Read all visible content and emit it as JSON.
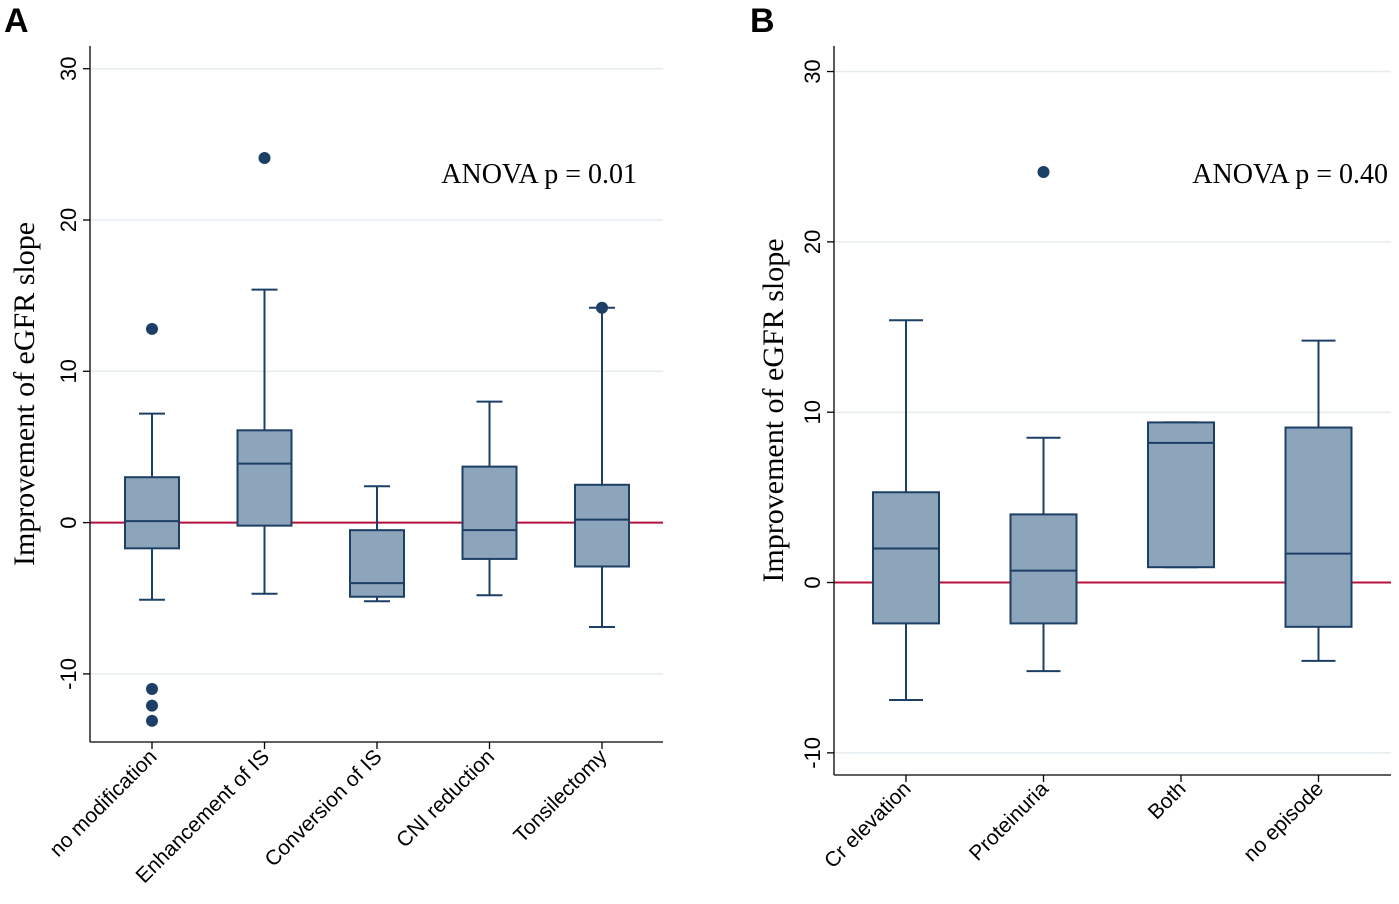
{
  "chart_data": [
    {
      "type": "box",
      "panel_label": "A",
      "ylabel": "Improvement  of eGFR slope",
      "ylim": [
        -14.5,
        31.5
      ],
      "yticks": [
        -10,
        0,
        10,
        20,
        30
      ],
      "ytick_labels": [
        "-10",
        "0",
        "10",
        "20",
        "30"
      ],
      "annotation": "ANOVA  p = 0.01",
      "reference_line": 0,
      "grid": true,
      "categories": [
        "no modification",
        "Enhancement of IS",
        "Conversion of IS",
        "CNI reduction",
        "Tonsilectomy"
      ],
      "boxes": [
        {
          "whisker_low": -5.1,
          "q1": -1.7,
          "median": 0.1,
          "q3": 3.0,
          "whisker_high": 7.2,
          "outliers": [
            12.8,
            -11.0,
            -12.1,
            -13.1
          ]
        },
        {
          "whisker_low": -4.7,
          "q1": -0.2,
          "median": 3.9,
          "q3": 6.1,
          "whisker_high": 15.4,
          "outliers": [
            24.1
          ]
        },
        {
          "whisker_low": -5.2,
          "q1": -4.9,
          "median": -4.0,
          "q3": -0.5,
          "whisker_high": 2.4,
          "outliers": []
        },
        {
          "whisker_low": -4.8,
          "q1": -2.4,
          "median": -0.5,
          "q3": 3.7,
          "whisker_high": 8.0,
          "outliers": []
        },
        {
          "whisker_low": -6.9,
          "q1": -2.9,
          "median": 0.2,
          "q3": 2.5,
          "whisker_high": 14.2,
          "outliers": [
            14.2
          ]
        }
      ]
    },
    {
      "type": "box",
      "panel_label": "B",
      "ylabel": "Improvement  of eGFR slope",
      "ylim": [
        -11.3,
        31.5
      ],
      "yticks": [
        -10,
        0,
        10,
        20,
        30
      ],
      "ytick_labels": [
        "-10",
        "0",
        "10",
        "20",
        "30"
      ],
      "annotation": "ANOVA  p = 0.40",
      "reference_line": 0,
      "grid": true,
      "categories": [
        "Cr elevation",
        "Proteinuria",
        "Both",
        "no episode"
      ],
      "boxes": [
        {
          "whisker_low": -6.9,
          "q1": -2.4,
          "median": 2.0,
          "q3": 5.3,
          "whisker_high": 15.4,
          "outliers": []
        },
        {
          "whisker_low": -5.2,
          "q1": -2.4,
          "median": 0.7,
          "q3": 4.0,
          "whisker_high": 8.5,
          "outliers": [
            24.1
          ]
        },
        {
          "whisker_low": 0.9,
          "q1": 0.9,
          "median": 8.2,
          "q3": 9.4,
          "whisker_high": 9.4,
          "outliers": []
        },
        {
          "whisker_low": -4.6,
          "q1": -2.6,
          "median": 1.7,
          "q3": 9.1,
          "whisker_high": 14.2,
          "outliers": []
        }
      ]
    }
  ]
}
